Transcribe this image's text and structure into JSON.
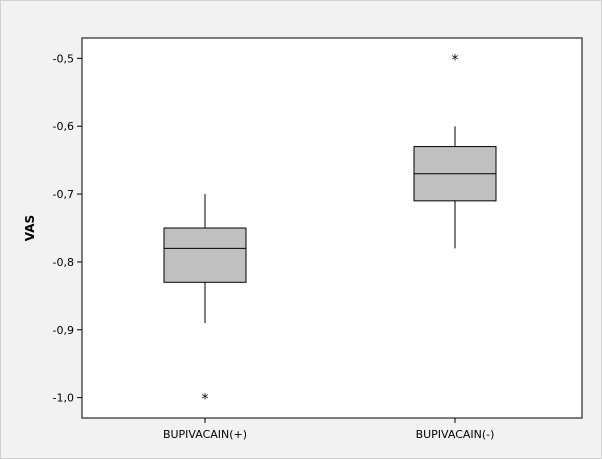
{
  "chart_data": {
    "type": "boxplot",
    "title": "",
    "xlabel": "",
    "ylabel": "VAS",
    "ylim": [
      -1.03,
      -0.47
    ],
    "yticks": [
      -0.5,
      -0.6,
      -0.7,
      -0.8,
      -0.9,
      -1.0
    ],
    "ytick_labels": [
      "-0,5",
      "-0,6",
      "-0,7",
      "-0,8",
      "-0,9",
      "-1,0"
    ],
    "categories": [
      "BUPIVACAIN(+)",
      "BUPIVACAIN(-)"
    ],
    "boxes": [
      {
        "category": "BUPIVACAIN(+)",
        "whisker_low": -0.89,
        "q1": -0.83,
        "median": -0.78,
        "q3": -0.75,
        "whisker_high": -0.7,
        "outliers": [
          -1.0
        ]
      },
      {
        "category": "BUPIVACAIN(-)",
        "whisker_low": -0.78,
        "q1": -0.71,
        "median": -0.67,
        "q3": -0.63,
        "whisker_high": -0.6,
        "outliers": [
          -0.5
        ]
      }
    ],
    "box_fill": "#c0c0c0",
    "plot_background": "#ffffff",
    "figure_background": "#f2f2f2",
    "grid": false,
    "outlier_marker": "*"
  }
}
